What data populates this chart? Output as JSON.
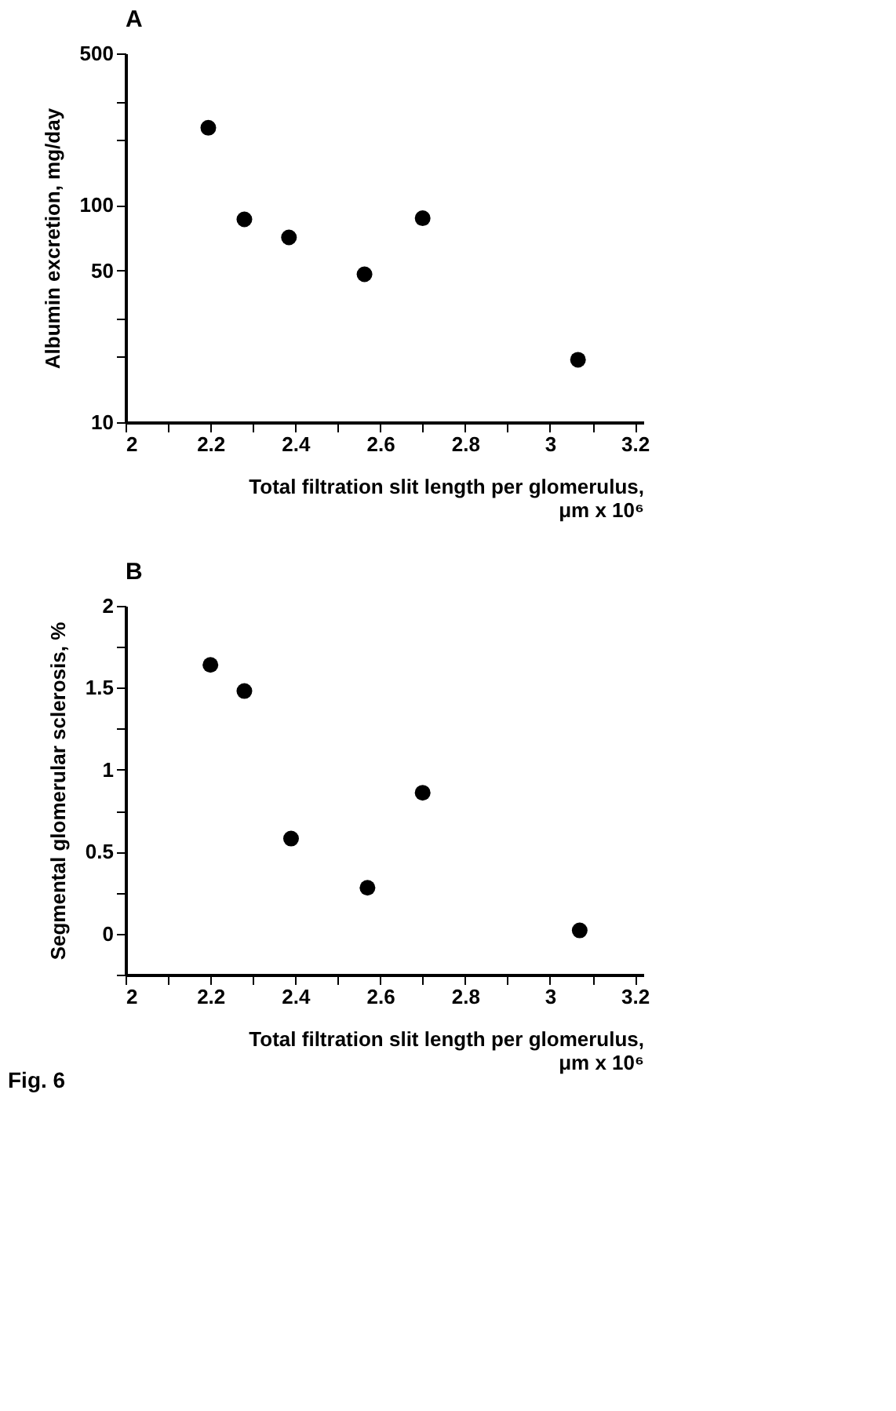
{
  "chart_data": [
    {
      "type": "scatter",
      "title": "A",
      "xlabel": "Total filtration slit length per glomerulus, μm x 10⁶",
      "ylabel": "Albumin excretion, mg/day",
      "x": [
        2.195,
        2.28,
        2.385,
        2.563,
        2.7,
        3.066
      ],
      "series": [
        {
          "color": "#000000",
          "values": [
            227,
            86,
            71,
            48,
            87,
            19.4
          ]
        }
      ],
      "log": "y",
      "xlim": [
        2,
        3.22
      ],
      "ylim": [
        10,
        500
      ],
      "xticks": [
        2,
        {
          "value": 2.1,
          "label": null
        },
        2.2,
        {
          "value": 2.3,
          "label": null
        },
        2.4,
        {
          "value": 2.5,
          "label": null
        },
        2.6,
        {
          "value": 2.7,
          "label": null
        },
        2.8,
        {
          "value": 2.9,
          "label": null
        },
        3,
        {
          "value": 3.1,
          "label": null
        },
        3.2
      ],
      "yticks": [
        10,
        {
          "value": 20,
          "label": null
        },
        {
          "value": 30,
          "label": null
        },
        50,
        100,
        {
          "value": 200,
          "label": null
        },
        {
          "value": 300,
          "label": null
        },
        500
      ],
      "marker": "circle",
      "grid": false
    },
    {
      "type": "scatter",
      "title": "B",
      "xlabel": "Total filtration slit length per glomerulus, μm x 10⁶",
      "ylabel": "Segmental glomerular sclerosis, %",
      "x": [
        2.2,
        2.28,
        2.39,
        2.57,
        2.7,
        3.07
      ],
      "series": [
        {
          "color": "#000000",
          "values": [
            1.64,
            1.48,
            0.58,
            0.28,
            0.86,
            0.02
          ]
        }
      ],
      "xlim": [
        2,
        3.22
      ],
      "ylim": [
        -0.25,
        2
      ],
      "xticks": [
        2,
        {
          "value": 2.1,
          "label": null
        },
        2.2,
        {
          "value": 2.3,
          "label": null
        },
        2.4,
        {
          "value": 2.5,
          "label": null
        },
        2.6,
        {
          "value": 2.7,
          "label": null
        },
        2.8,
        {
          "value": 2.9,
          "label": null
        },
        3,
        {
          "value": 3.1,
          "label": null
        },
        3.2
      ],
      "yticks": [
        {
          "value": -0.25,
          "label": null
        },
        0,
        {
          "value": 0.25,
          "label": null
        },
        0.5,
        {
          "value": 0.75,
          "label": null
        },
        1,
        {
          "value": 1.25,
          "label": null
        },
        1.5,
        {
          "value": 1.75,
          "label": null
        },
        2
      ],
      "marker": "circle",
      "grid": false,
      "annotations": [
        "Fig. 6"
      ]
    }
  ]
}
